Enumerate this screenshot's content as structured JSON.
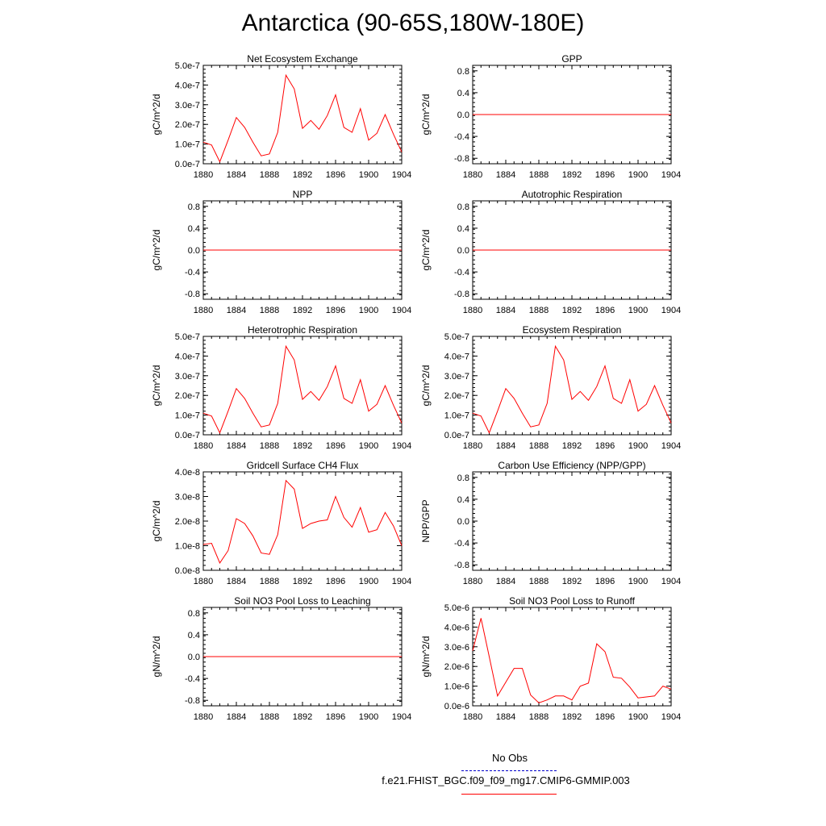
{
  "title": "Antarctica (90-65S,180W-180E)",
  "colors": {
    "line": "#ff0000",
    "obs": "#0000cc"
  },
  "legend": {
    "obs_label": "No Obs",
    "model_label": "f.e21.FHIST_BGC.f09_f09_mg17.CMIP6-GMMIP.003"
  },
  "chart_data": [
    {
      "type": "line",
      "title": "Net Ecosystem Exchange",
      "ylabel": "gC/m^2/d",
      "ylim": [
        0,
        5e-07
      ],
      "yticks": [
        0,
        1e-07,
        2e-07,
        3e-07,
        4e-07,
        5e-07
      ],
      "yticklabels": [
        "0.0e-7",
        "1.0e-7",
        "2.0e-7",
        "3.0e-7",
        "4.0e-7",
        "5.0e-7"
      ],
      "xlim": [
        1880,
        1904
      ],
      "xticks": [
        1880,
        1884,
        1888,
        1892,
        1896,
        1900,
        1904
      ],
      "series": [
        {
          "x": [
            1880,
            1881,
            1882,
            1883,
            1884,
            1885,
            1886,
            1887,
            1888,
            1889,
            1890,
            1891,
            1892,
            1893,
            1894,
            1895,
            1896,
            1897,
            1898,
            1899,
            1900,
            1901,
            1902,
            1903,
            1904
          ],
          "values": [
            1.1e-07,
            9.5e-08,
            1e-08,
            1.2e-07,
            2.35e-07,
            1.85e-07,
            1.1e-07,
            4e-08,
            5e-08,
            1.6e-07,
            4.5e-07,
            3.8e-07,
            1.8e-07,
            2.2e-07,
            1.75e-07,
            2.45e-07,
            3.5e-07,
            1.85e-07,
            1.6e-07,
            2.8e-07,
            1.2e-07,
            1.55e-07,
            2.5e-07,
            1.5e-07,
            6e-08
          ]
        }
      ]
    },
    {
      "type": "line",
      "title": "GPP",
      "ylabel": "gC/m^2/d",
      "ylim": [
        -0.9,
        0.9
      ],
      "yticks": [
        -0.8,
        -0.4,
        0,
        0.4,
        0.8
      ],
      "yticklabels": [
        "-0.8",
        "-0.4",
        "0.0",
        "0.4",
        "0.8"
      ],
      "xlim": [
        1880,
        1904
      ],
      "xticks": [
        1880,
        1884,
        1888,
        1892,
        1896,
        1900,
        1904
      ],
      "series": [
        {
          "x": [
            1880,
            1904
          ],
          "values": [
            0,
            0
          ]
        }
      ]
    },
    {
      "type": "line",
      "title": "NPP",
      "ylabel": "gC/m^2/d",
      "ylim": [
        -0.9,
        0.9
      ],
      "yticks": [
        -0.8,
        -0.4,
        0,
        0.4,
        0.8
      ],
      "yticklabels": [
        "-0.8",
        "-0.4",
        "0.0",
        "0.4",
        "0.8"
      ],
      "xlim": [
        1880,
        1904
      ],
      "xticks": [
        1880,
        1884,
        1888,
        1892,
        1896,
        1900,
        1904
      ],
      "series": [
        {
          "x": [
            1880,
            1904
          ],
          "values": [
            0,
            0
          ]
        }
      ]
    },
    {
      "type": "line",
      "title": "Autotrophic Respiration",
      "ylabel": "gC/m^2/d",
      "ylim": [
        -0.9,
        0.9
      ],
      "yticks": [
        -0.8,
        -0.4,
        0,
        0.4,
        0.8
      ],
      "yticklabels": [
        "-0.8",
        "-0.4",
        "0.0",
        "0.4",
        "0.8"
      ],
      "xlim": [
        1880,
        1904
      ],
      "xticks": [
        1880,
        1884,
        1888,
        1892,
        1896,
        1900,
        1904
      ],
      "series": [
        {
          "x": [
            1880,
            1904
          ],
          "values": [
            0,
            0
          ]
        }
      ]
    },
    {
      "type": "line",
      "title": "Heterotrophic Respiration",
      "ylabel": "gC/m^2/d",
      "ylim": [
        0,
        5e-07
      ],
      "yticks": [
        0,
        1e-07,
        2e-07,
        3e-07,
        4e-07,
        5e-07
      ],
      "yticklabels": [
        "0.0e-7",
        "1.0e-7",
        "2.0e-7",
        "3.0e-7",
        "4.0e-7",
        "5.0e-7"
      ],
      "xlim": [
        1880,
        1904
      ],
      "xticks": [
        1880,
        1884,
        1888,
        1892,
        1896,
        1900,
        1904
      ],
      "series": [
        {
          "x": [
            1880,
            1881,
            1882,
            1883,
            1884,
            1885,
            1886,
            1887,
            1888,
            1889,
            1890,
            1891,
            1892,
            1893,
            1894,
            1895,
            1896,
            1897,
            1898,
            1899,
            1900,
            1901,
            1902,
            1903,
            1904
          ],
          "values": [
            1.1e-07,
            9.5e-08,
            1e-08,
            1.2e-07,
            2.35e-07,
            1.85e-07,
            1.1e-07,
            4e-08,
            5e-08,
            1.6e-07,
            4.5e-07,
            3.8e-07,
            1.8e-07,
            2.2e-07,
            1.75e-07,
            2.45e-07,
            3.5e-07,
            1.85e-07,
            1.6e-07,
            2.8e-07,
            1.2e-07,
            1.55e-07,
            2.5e-07,
            1.5e-07,
            6e-08
          ]
        }
      ]
    },
    {
      "type": "line",
      "title": "Ecosystem Respiration",
      "ylabel": "gC/m^2/d",
      "ylim": [
        0,
        5e-07
      ],
      "yticks": [
        0,
        1e-07,
        2e-07,
        3e-07,
        4e-07,
        5e-07
      ],
      "yticklabels": [
        "0.0e-7",
        "1.0e-7",
        "2.0e-7",
        "3.0e-7",
        "4.0e-7",
        "5.0e-7"
      ],
      "xlim": [
        1880,
        1904
      ],
      "xticks": [
        1880,
        1884,
        1888,
        1892,
        1896,
        1900,
        1904
      ],
      "series": [
        {
          "x": [
            1880,
            1881,
            1882,
            1883,
            1884,
            1885,
            1886,
            1887,
            1888,
            1889,
            1890,
            1891,
            1892,
            1893,
            1894,
            1895,
            1896,
            1897,
            1898,
            1899,
            1900,
            1901,
            1902,
            1903,
            1904
          ],
          "values": [
            1.1e-07,
            9.5e-08,
            1e-08,
            1.2e-07,
            2.35e-07,
            1.85e-07,
            1.1e-07,
            4e-08,
            5e-08,
            1.6e-07,
            4.5e-07,
            3.8e-07,
            1.8e-07,
            2.2e-07,
            1.75e-07,
            2.45e-07,
            3.5e-07,
            1.85e-07,
            1.6e-07,
            2.8e-07,
            1.2e-07,
            1.55e-07,
            2.5e-07,
            1.5e-07,
            6e-08
          ]
        }
      ]
    },
    {
      "type": "line",
      "title": "Gridcell Surface CH4 Flux",
      "ylabel": "gC/m^2/d",
      "ylim": [
        0,
        4e-08
      ],
      "yticks": [
        0,
        1e-08,
        2e-08,
        3e-08,
        4e-08
      ],
      "yticklabels": [
        "0.0e-8",
        "1.0e-8",
        "2.0e-8",
        "3.0e-8",
        "4.0e-8"
      ],
      "xlim": [
        1880,
        1904
      ],
      "xticks": [
        1880,
        1884,
        1888,
        1892,
        1896,
        1900,
        1904
      ],
      "series": [
        {
          "x": [
            1880,
            1881,
            1882,
            1883,
            1884,
            1885,
            1886,
            1887,
            1888,
            1889,
            1890,
            1891,
            1892,
            1893,
            1894,
            1895,
            1896,
            1897,
            1898,
            1899,
            1900,
            1901,
            1902,
            1903,
            1904
          ],
          "values": [
            1.05e-08,
            1.1e-08,
            3e-09,
            8e-09,
            2.1e-08,
            1.9e-08,
            1.4e-08,
            7e-09,
            6.5e-09,
            1.45e-08,
            3.65e-08,
            3.3e-08,
            1.7e-08,
            1.9e-08,
            2e-08,
            2.05e-08,
            3e-08,
            2.15e-08,
            1.75e-08,
            2.55e-08,
            1.55e-08,
            1.65e-08,
            2.35e-08,
            1.8e-08,
            1e-08
          ]
        }
      ]
    },
    {
      "type": "line",
      "title": "Carbon Use Efficiency (NPP/GPP)",
      "ylabel": "NPP/GPP",
      "ylim": [
        -0.9,
        0.9
      ],
      "yticks": [
        -0.8,
        -0.4,
        0,
        0.4,
        0.8
      ],
      "yticklabels": [
        "-0.8",
        "-0.4",
        "0.0",
        "0.4",
        "0.8"
      ],
      "xlim": [
        1880,
        1904
      ],
      "xticks": [
        1880,
        1884,
        1888,
        1892,
        1896,
        1900,
        1904
      ],
      "series": []
    },
    {
      "type": "line",
      "title": "Soil NO3 Pool Loss to Leaching",
      "ylabel": "gN/m^2/d",
      "ylim": [
        -0.9,
        0.9
      ],
      "yticks": [
        -0.8,
        -0.4,
        0,
        0.4,
        0.8
      ],
      "yticklabels": [
        "-0.8",
        "-0.4",
        "0.0",
        "0.4",
        "0.8"
      ],
      "xlim": [
        1880,
        1904
      ],
      "xticks": [
        1880,
        1884,
        1888,
        1892,
        1896,
        1900,
        1904
      ],
      "series": [
        {
          "x": [
            1880,
            1904
          ],
          "values": [
            0,
            0
          ]
        }
      ]
    },
    {
      "type": "line",
      "title": "Soil NO3 Pool Loss to Runoff",
      "ylabel": "gN/m^2/d",
      "ylim": [
        0,
        5e-06
      ],
      "yticks": [
        0,
        1e-06,
        2e-06,
        3e-06,
        4e-06,
        5e-06
      ],
      "yticklabels": [
        "0.0e-6",
        "1.0e-6",
        "2.0e-6",
        "3.0e-6",
        "4.0e-6",
        "5.0e-6"
      ],
      "xlim": [
        1880,
        1904
      ],
      "xticks": [
        1880,
        1884,
        1888,
        1892,
        1896,
        1900,
        1904
      ],
      "series": [
        {
          "x": [
            1880,
            1881,
            1882,
            1883,
            1884,
            1885,
            1886,
            1887,
            1888,
            1889,
            1890,
            1891,
            1892,
            1893,
            1894,
            1895,
            1896,
            1897,
            1898,
            1899,
            1900,
            1901,
            1902,
            1903,
            1904
          ],
          "values": [
            2.8e-06,
            4.45e-06,
            2.5e-06,
            5e-07,
            1.2e-06,
            1.9e-06,
            1.9e-06,
            5.5e-07,
            1.5e-07,
            3e-07,
            5e-07,
            5e-07,
            3e-07,
            1e-06,
            1.15e-06,
            3.15e-06,
            2.75e-06,
            1.45e-06,
            1.4e-06,
            9.5e-07,
            4e-07,
            4.5e-07,
            5e-07,
            1e-06,
            8.5e-07
          ]
        }
      ]
    }
  ]
}
